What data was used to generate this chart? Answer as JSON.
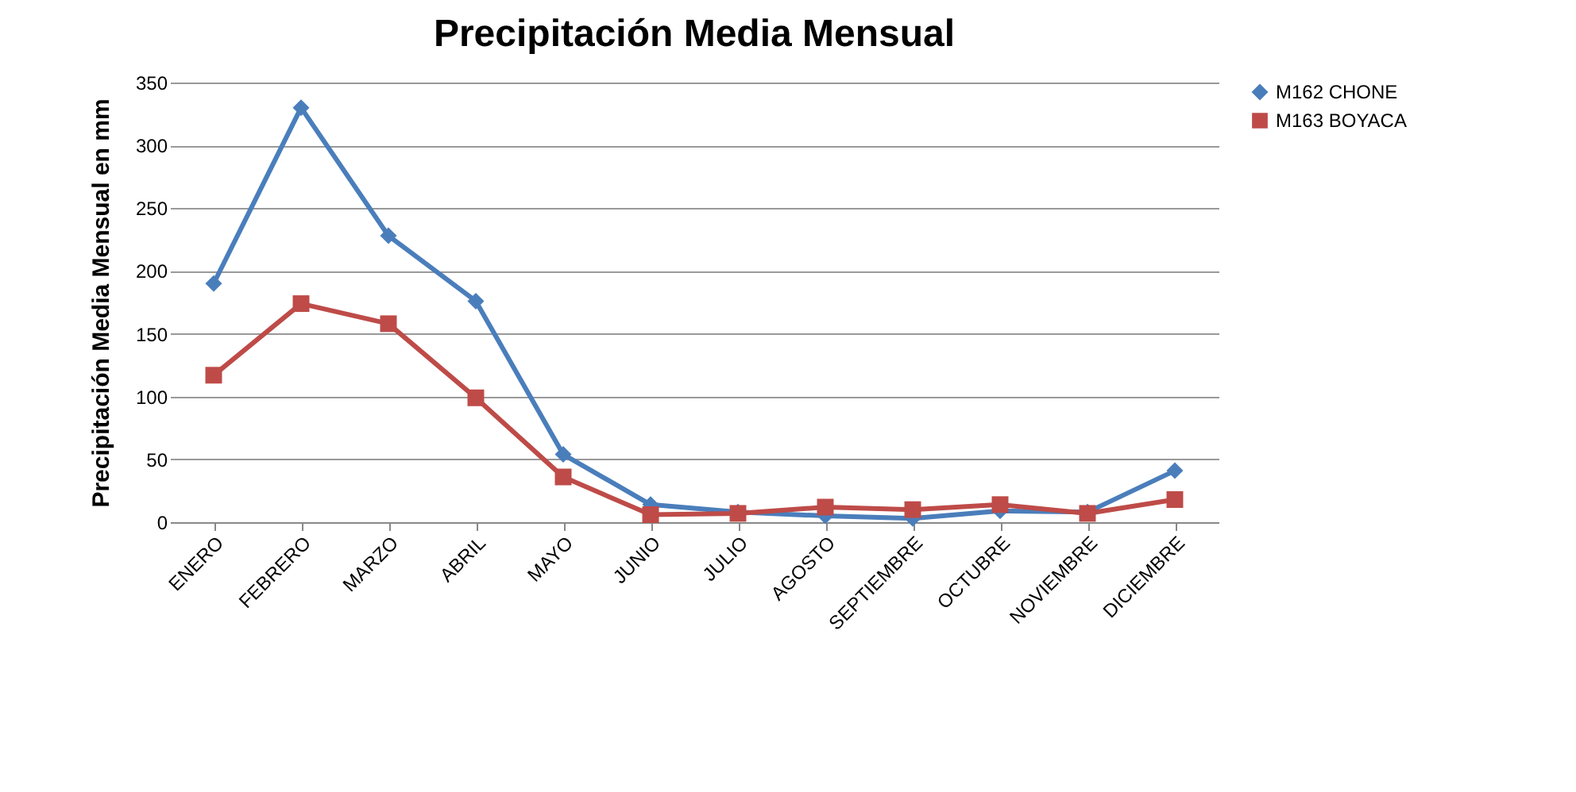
{
  "chart_data": {
    "type": "line",
    "title": "Precipitación Media Mensual",
    "ylabel": "Precipitación Media Mensual en mm",
    "categories": [
      "ENERO",
      "FEBRERO",
      "MARZO",
      "ABRIL",
      "MAYO",
      "JUNIO",
      "JULIO",
      "AGOSTO",
      "SEPTIEMBRE",
      "OCTUBRE",
      "NOVIEMBRE",
      "DICIEMBRE"
    ],
    "series": [
      {
        "name": "M162 CHONE",
        "color": "#4a7ebb",
        "marker": "diamond",
        "values": [
          190,
          330,
          228,
          176,
          54,
          14,
          8,
          5,
          3,
          9,
          8,
          41
        ]
      },
      {
        "name": "M163 BOYACA",
        "color": "#be4b48",
        "marker": "square",
        "values": [
          117,
          174,
          158,
          99,
          36,
          6,
          7,
          12,
          10,
          14,
          7,
          18
        ]
      }
    ],
    "ylim": [
      0,
      350
    ],
    "yticks": [
      0,
      50,
      100,
      150,
      200,
      250,
      300,
      350
    ],
    "grid": "y",
    "legend": "right"
  }
}
